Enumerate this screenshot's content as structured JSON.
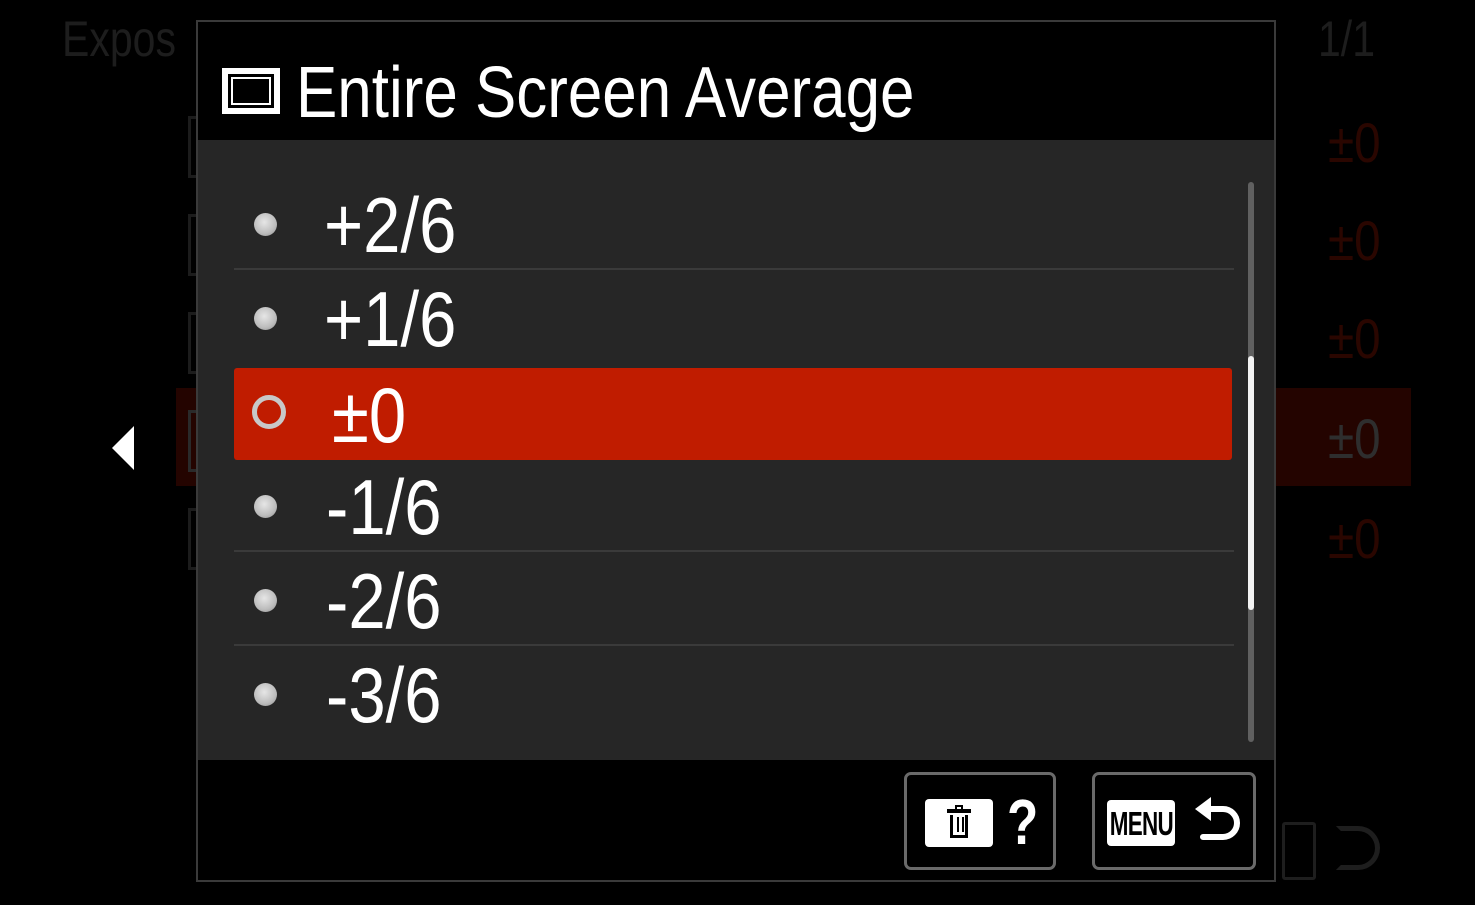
{
  "background": {
    "title": "Expos",
    "page_indicator": "1/1",
    "row_values": [
      "±0",
      "±0",
      "±0",
      "±0",
      "±0"
    ],
    "nav_left_icon": "triangle-left-icon"
  },
  "dialog": {
    "header_icon": "entire-screen-average-icon",
    "title": "Entire Screen Average",
    "options": [
      {
        "label": "+2/6",
        "selected": false
      },
      {
        "label": "+1/6",
        "selected": false
      },
      {
        "label": "±0",
        "selected": true
      },
      {
        "label": "-1/6",
        "selected": false
      },
      {
        "label": "-2/6",
        "selected": false
      },
      {
        "label": "-3/6",
        "selected": false
      }
    ],
    "footer": {
      "help_button": {
        "icon": "trash-icon",
        "label": "?"
      },
      "back_button": {
        "icon": "menu-icon",
        "label": "MENU",
        "return_icon": "return-arrow-icon"
      }
    }
  },
  "colors": {
    "accent_selected": "#c01c00",
    "panel": "#262626",
    "background": "#000000",
    "text": "#ffffff"
  }
}
